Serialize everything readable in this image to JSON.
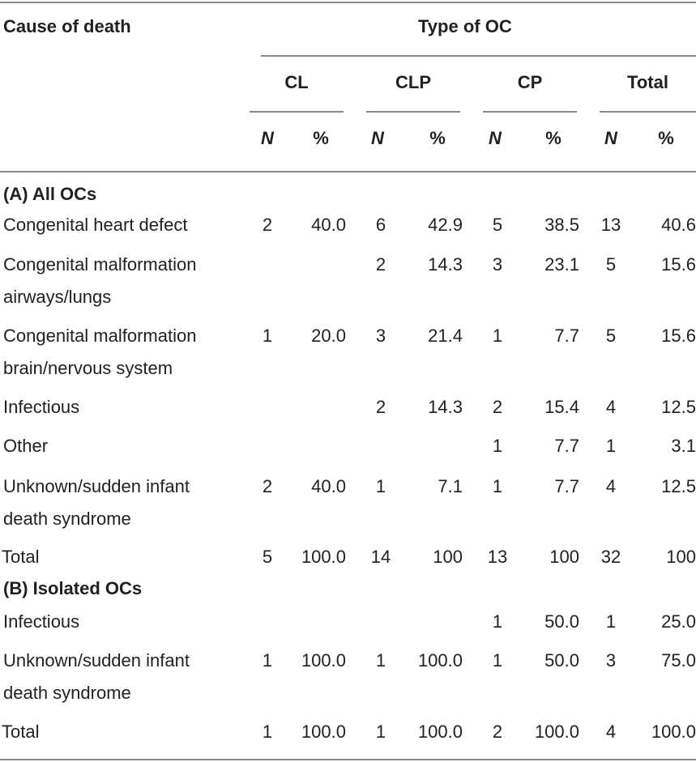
{
  "header": {
    "cause_of_death": "Cause of death",
    "type_of_oc": "Type of OC",
    "groups": [
      "CL",
      "CLP",
      "CP",
      "Total"
    ],
    "n_label": "N",
    "pct_label": "%"
  },
  "section_a": {
    "title": "(A) All OCs",
    "rows": [
      {
        "label": [
          "Congenital heart defect"
        ],
        "cells": [
          "2",
          "40.0",
          "6",
          "42.9",
          "5",
          "38.5",
          "13",
          "40.6"
        ]
      },
      {
        "label": [
          "Congenital malformation",
          "airways/lungs"
        ],
        "cells": [
          "",
          "",
          "2",
          "14.3",
          "3",
          "23.1",
          "5",
          "15.6"
        ]
      },
      {
        "label": [
          "Congenital malformation",
          "brain/nervous system"
        ],
        "cells": [
          "1",
          "20.0",
          "3",
          "21.4",
          "1",
          "7.7",
          "5",
          "15.6"
        ]
      },
      {
        "label": [
          "Infectious"
        ],
        "cells": [
          "",
          "",
          "2",
          "14.3",
          "2",
          "15.4",
          "4",
          "12.5"
        ]
      },
      {
        "label": [
          "Other"
        ],
        "cells": [
          "",
          "",
          "",
          "",
          "1",
          "7.7",
          "1",
          "3.1"
        ]
      },
      {
        "label": [
          "Unknown/sudden infant",
          "death syndrome"
        ],
        "cells": [
          "2",
          "40.0",
          "1",
          "7.1",
          "1",
          "7.7",
          "4",
          "12.5"
        ]
      },
      {
        "label": [
          "Total"
        ],
        "cells": [
          "5",
          "100.0",
          "14",
          "100",
          "13",
          "100",
          "32",
          "100"
        ]
      }
    ]
  },
  "section_b": {
    "title": "(B) Isolated OCs",
    "rows": [
      {
        "label": [
          "Infectious"
        ],
        "cells": [
          "",
          "",
          "",
          "",
          "1",
          "50.0",
          "1",
          "25.0"
        ]
      },
      {
        "label": [
          "Unknown/sudden infant",
          "death syndrome"
        ],
        "cells": [
          "1",
          "100.0",
          "1",
          "100.0",
          "1",
          "50.0",
          "3",
          "75.0"
        ]
      },
      {
        "label": [
          "Total"
        ],
        "cells": [
          "1",
          "100.0",
          "1",
          "100.0",
          "2",
          "100.0",
          "4",
          "100.0"
        ]
      }
    ]
  }
}
